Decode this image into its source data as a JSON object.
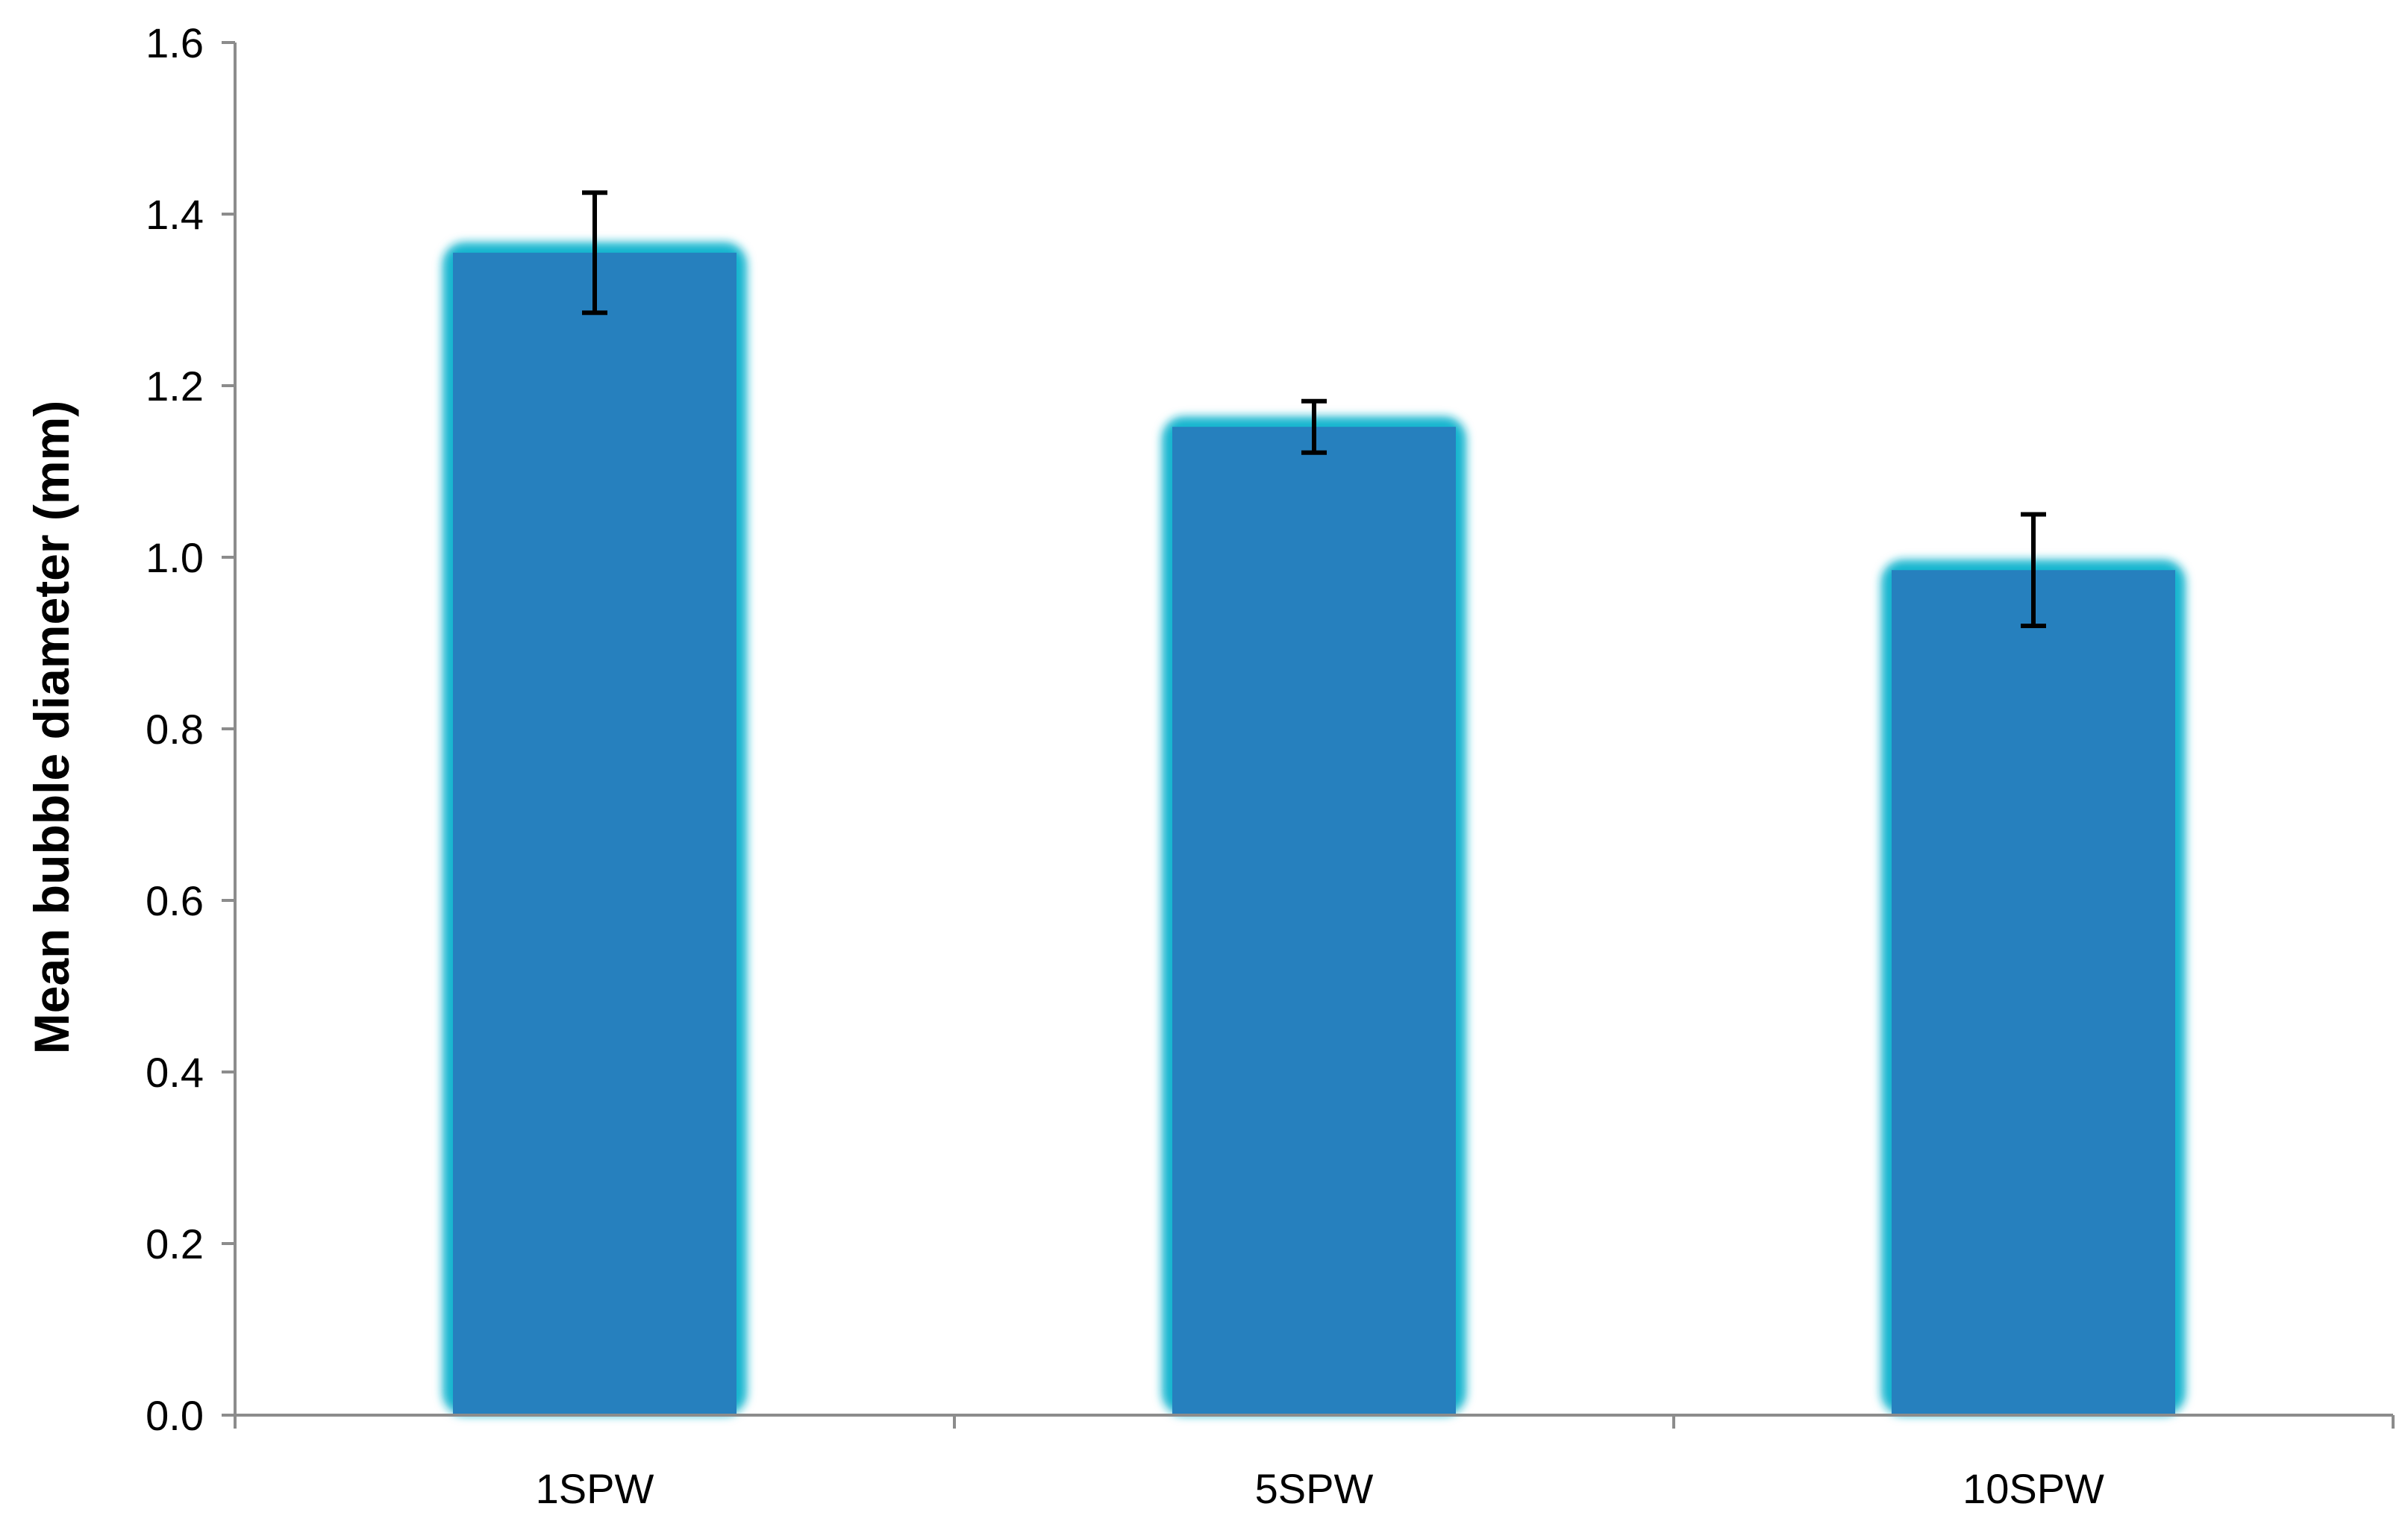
{
  "chart_data": {
    "type": "bar",
    "title": "",
    "xlabel": "",
    "ylabel": "Mean bubble diameter (mm)",
    "categories": [
      "1SPW",
      "5SPW",
      "10SPW"
    ],
    "values": [
      1.355,
      1.152,
      0.985
    ],
    "errors": [
      0.07,
      0.03,
      0.065
    ],
    "ylim": [
      0,
      1.6
    ],
    "yticks": [
      "0.0",
      "0.2",
      "0.4",
      "0.6",
      "0.8",
      "1.0",
      "1.2",
      "1.4",
      "1.6"
    ],
    "grid": false,
    "legend": "none",
    "colors": {
      "bar_fill": "#2680be",
      "bar_glow": "#12b5cf",
      "axis": "#8c8c8c",
      "error_bar": "#000000"
    }
  }
}
